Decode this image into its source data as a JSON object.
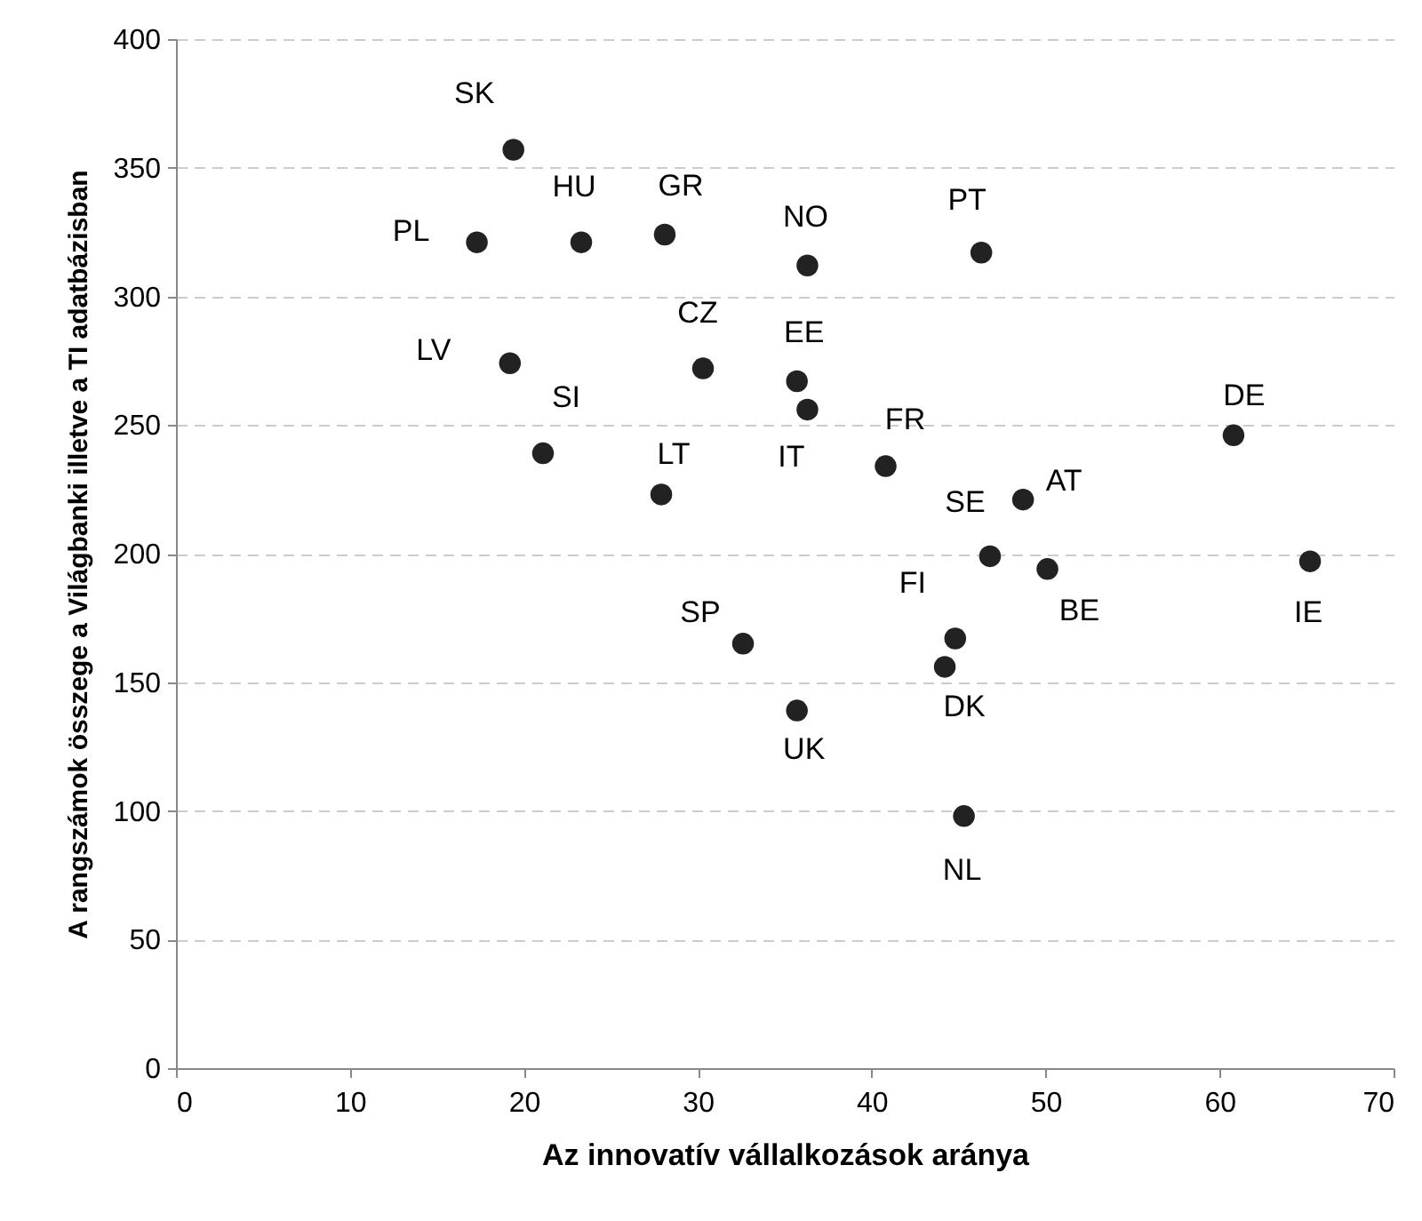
{
  "chart_data": {
    "type": "scatter",
    "xlabel": "Az innovatív vállalkozások aránya",
    "ylabel": "A rangszámok összege a Világbanki illetve a TI adatbázisban",
    "x": [
      19.4,
      17.3,
      23.3,
      28.1,
      36.3,
      46.3,
      19.2,
      30.3,
      35.7,
      36.3,
      21.1,
      27.9,
      40.8,
      48.7,
      46.8,
      50.1,
      32.6,
      44.8,
      44.2,
      35.7,
      45.3,
      60.8,
      65.2
    ],
    "series": [
      {
        "color": "#222222",
        "values": [
          357,
          321,
          321,
          324,
          312,
          317,
          274,
          272,
          267,
          256,
          239,
          223,
          234,
          221,
          199,
          194,
          165,
          167,
          156,
          139,
          98,
          246,
          197
        ]
      }
    ],
    "annotations": [
      {
        "text": "SK",
        "x": 19.4,
        "y": 357
      },
      {
        "text": "PL",
        "x": 17.3,
        "y": 321
      },
      {
        "text": "HU",
        "x": 23.3,
        "y": 321
      },
      {
        "text": "GR",
        "x": 28.1,
        "y": 324
      },
      {
        "text": "NO",
        "x": 36.3,
        "y": 312
      },
      {
        "text": "PT",
        "x": 46.3,
        "y": 317
      },
      {
        "text": "LV",
        "x": 19.2,
        "y": 274
      },
      {
        "text": "CZ",
        "x": 30.3,
        "y": 272
      },
      {
        "text": "EE",
        "x": 35.7,
        "y": 267
      },
      {
        "text": "IT",
        "x": 36.3,
        "y": 256
      },
      {
        "text": "SI",
        "x": 21.1,
        "y": 239
      },
      {
        "text": "LT",
        "x": 27.9,
        "y": 223
      },
      {
        "text": "FR",
        "x": 40.8,
        "y": 234
      },
      {
        "text": "AT",
        "x": 48.7,
        "y": 221
      },
      {
        "text": "SE",
        "x": 46.8,
        "y": 199
      },
      {
        "text": "BE",
        "x": 50.1,
        "y": 194
      },
      {
        "text": "SP",
        "x": 32.6,
        "y": 165
      },
      {
        "text": "FI",
        "x": 44.8,
        "y": 167
      },
      {
        "text": "DK",
        "x": 44.2,
        "y": 156
      },
      {
        "text": "UK",
        "x": 35.7,
        "y": 139
      },
      {
        "text": "NL",
        "x": 45.3,
        "y": 98
      },
      {
        "text": "DE",
        "x": 60.8,
        "y": 246
      },
      {
        "text": "IE",
        "x": 65.2,
        "y": 197
      }
    ],
    "xlim": [
      0,
      70
    ],
    "xticks": [
      0,
      10,
      20,
      30,
      40,
      50,
      60,
      70
    ],
    "ylim": [
      0,
      400
    ],
    "yticks": [
      0,
      50,
      100,
      150,
      200,
      250,
      300,
      350,
      400
    ],
    "grid": "y",
    "marker": "circle"
  }
}
